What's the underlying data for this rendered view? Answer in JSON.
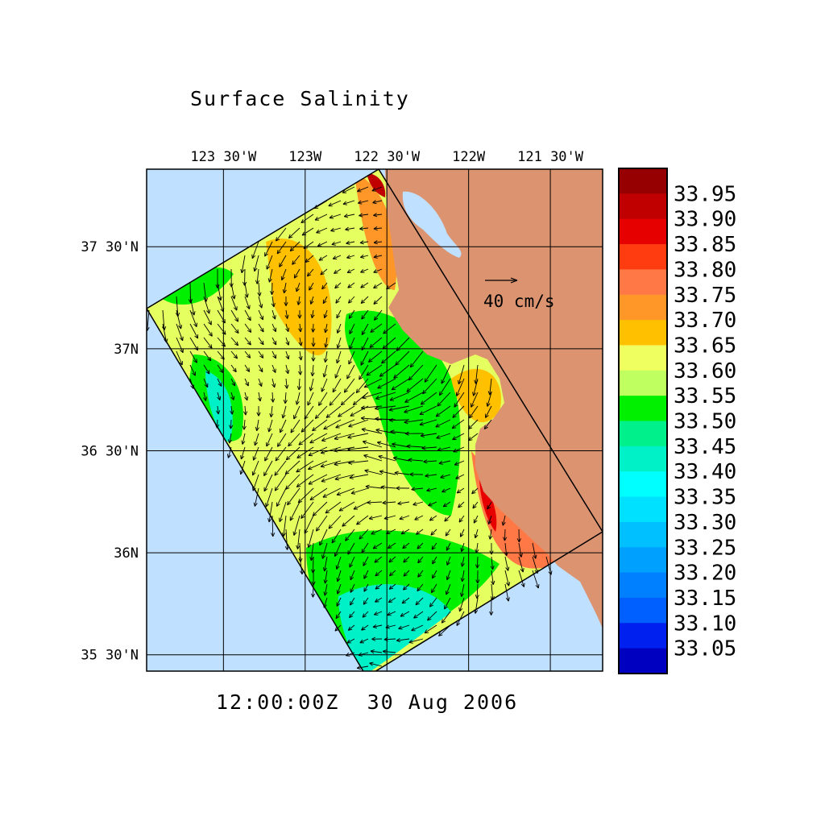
{
  "chart_data": {
    "type": "heatmap",
    "title": "Surface Salinity",
    "timestamp": "12:00:00Z  30 Aug 2006",
    "x_ticks": [
      {
        "lon": -123.5,
        "label": "123 30'W"
      },
      {
        "lon": -123.0,
        "label": "123W"
      },
      {
        "lon": -122.5,
        "label": "122 30'W"
      },
      {
        "lon": -122.0,
        "label": "122W"
      },
      {
        "lon": -121.5,
        "label": "121 30'W"
      }
    ],
    "y_ticks": [
      {
        "lat": 37.5,
        "label": "37 30'N"
      },
      {
        "lat": 37.0,
        "label": "37N"
      },
      {
        "lat": 36.5,
        "label": "36 30'N"
      },
      {
        "lat": 36.0,
        "label": "36N"
      },
      {
        "lat": 35.5,
        "label": "35 30'N"
      }
    ],
    "xlim": [
      -123.97,
      -121.18
    ],
    "ylim": [
      35.42,
      37.88
    ],
    "grid": true,
    "vector_scale": {
      "label": "40 cm/s",
      "value": 40,
      "unit": "cm/s"
    },
    "colorbar": {
      "placement": "right",
      "labels": [
        "33.95",
        "33.90",
        "33.85",
        "33.80",
        "33.75",
        "33.70",
        "33.65",
        "33.60",
        "33.55",
        "33.50",
        "33.45",
        "33.40",
        "33.35",
        "33.30",
        "33.25",
        "33.20",
        "33.15",
        "33.10",
        "33.05"
      ],
      "colors": [
        "#960000",
        "#c00000",
        "#e60000",
        "#ff3c0f",
        "#ff7846",
        "#ff9628",
        "#ffc000",
        "#f0ff60",
        "#c0ff60",
        "#00f000",
        "#00f08c",
        "#00f0c8",
        "#00ffff",
        "#00e0ff",
        "#00c0ff",
        "#00a0ff",
        "#0080ff",
        "#0060ff",
        "#0020f0",
        "#0000c0"
      ]
    },
    "colors": {
      "ocean": "#c0e0ff",
      "land": "#dc9470"
    }
  }
}
